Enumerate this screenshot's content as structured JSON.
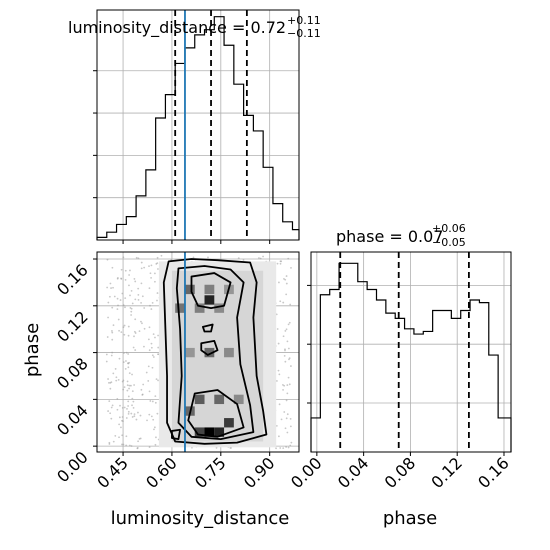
{
  "chart_data": {
    "type": "corner",
    "truth_color": "#1f77b4",
    "grid": true,
    "parameters": [
      {
        "name": "luminosity_distance",
        "title_main": "luminosity_distance = 0.72",
        "title_sup": "+0.11",
        "title_sub": "−0.11",
        "median": 0.72,
        "lower": 0.61,
        "upper": 0.83,
        "truth": 0.64,
        "range": [
          0.37,
          0.99
        ],
        "ticks": [
          0.45,
          0.6,
          0.75,
          0.9
        ],
        "tick_labels": [
          "0.45",
          "0.60",
          "0.75",
          "0.90"
        ],
        "hist_bins": [
          0.37,
          0.4,
          0.43,
          0.46,
          0.49,
          0.52,
          0.55,
          0.58,
          0.61,
          0.64,
          0.67,
          0.7,
          0.73,
          0.76,
          0.79,
          0.82,
          0.85,
          0.88,
          0.91,
          0.94,
          0.97,
          0.99
        ],
        "hist_counts": [
          1,
          3,
          6,
          9,
          17,
          27,
          47,
          56,
          68,
          74,
          79,
          81,
          86,
          75,
          60,
          48,
          42,
          28,
          14,
          7,
          4
        ]
      },
      {
        "name": "phase",
        "title_main": "phase = 0.07",
        "title_sup": "+0.06",
        "title_sub": "−0.05",
        "median": 0.07,
        "lower": 0.02,
        "upper": 0.13,
        "range": [
          -0.005,
          0.166
        ],
        "ticks": [
          0.0,
          0.04,
          0.08,
          0.12,
          0.16
        ],
        "tick_labels": [
          "0.00",
          "0.04",
          "0.08",
          "0.12",
          "0.16"
        ],
        "hist_bins": [
          -0.005,
          0.003,
          0.011,
          0.019,
          0.027,
          0.035,
          0.043,
          0.051,
          0.059,
          0.067,
          0.075,
          0.083,
          0.091,
          0.099,
          0.107,
          0.115,
          0.123,
          0.131,
          0.139,
          0.147,
          0.155,
          0.166
        ],
        "hist_counts": [
          13,
          60,
          62,
          72,
          72,
          65,
          62,
          58,
          53,
          51,
          47,
          45,
          46,
          54,
          54,
          51,
          54,
          58,
          57,
          37,
          13
        ]
      }
    ],
    "axis_labels": {
      "x_left": "luminosity_distance",
      "x_right": "phase",
      "y_left": "phase"
    },
    "density_2d": [
      {
        "x": 0.655,
        "y": 0.134,
        "v": 0.55
      },
      {
        "x": 0.715,
        "y": 0.134,
        "v": 0.45
      },
      {
        "x": 0.775,
        "y": 0.134,
        "v": 0.35
      },
      {
        "x": 0.625,
        "y": 0.118,
        "v": 0.5
      },
      {
        "x": 0.685,
        "y": 0.118,
        "v": 0.45
      },
      {
        "x": 0.745,
        "y": 0.118,
        "v": 0.4
      },
      {
        "x": 0.715,
        "y": 0.125,
        "v": 0.85
      },
      {
        "x": 0.655,
        "y": 0.08,
        "v": 0.35
      },
      {
        "x": 0.715,
        "y": 0.08,
        "v": 0.55
      },
      {
        "x": 0.775,
        "y": 0.08,
        "v": 0.4
      },
      {
        "x": 0.685,
        "y": 0.04,
        "v": 0.6
      },
      {
        "x": 0.745,
        "y": 0.04,
        "v": 0.55
      },
      {
        "x": 0.805,
        "y": 0.04,
        "v": 0.4
      },
      {
        "x": 0.655,
        "y": 0.03,
        "v": 0.55
      },
      {
        "x": 0.715,
        "y": 0.012,
        "v": 1.0
      },
      {
        "x": 0.745,
        "y": 0.012,
        "v": 0.85
      },
      {
        "x": 0.685,
        "y": 0.012,
        "v": 0.7
      },
      {
        "x": 0.775,
        "y": 0.02,
        "v": 0.75
      }
    ]
  }
}
